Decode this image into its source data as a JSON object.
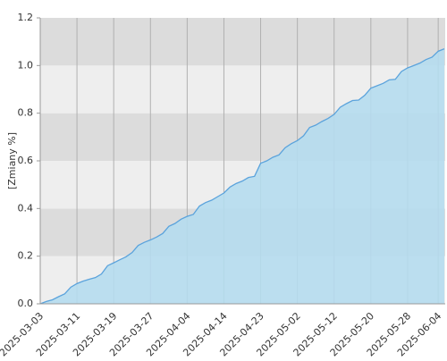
{
  "chart_data": {
    "type": "area",
    "y_label": "[Zmiany %]",
    "x": [
      "2025-03-03",
      "2025-03-04",
      "2025-03-05",
      "2025-03-06",
      "2025-03-07",
      "2025-03-10",
      "2025-03-11",
      "2025-03-12",
      "2025-03-13",
      "2025-03-14",
      "2025-03-17",
      "2025-03-18",
      "2025-03-19",
      "2025-03-20",
      "2025-03-21",
      "2025-03-24",
      "2025-03-25",
      "2025-03-26",
      "2025-03-27",
      "2025-03-28",
      "2025-03-31",
      "2025-04-01",
      "2025-04-02",
      "2025-04-03",
      "2025-04-04",
      "2025-04-07",
      "2025-04-08",
      "2025-04-09",
      "2025-04-10",
      "2025-04-11",
      "2025-04-14",
      "2025-04-15",
      "2025-04-16",
      "2025-04-17",
      "2025-04-18",
      "2025-04-22",
      "2025-04-23",
      "2025-04-24",
      "2025-04-25",
      "2025-04-28",
      "2025-04-29",
      "2025-04-30",
      "2025-05-02",
      "2025-05-05",
      "2025-05-06",
      "2025-05-07",
      "2025-05-08",
      "2025-05-09",
      "2025-05-12",
      "2025-05-13",
      "2025-05-14",
      "2025-05-15",
      "2025-05-16",
      "2025-05-19",
      "2025-05-20",
      "2025-05-21",
      "2025-05-22",
      "2025-05-23",
      "2025-05-26",
      "2025-05-27",
      "2025-05-28",
      "2025-05-29",
      "2025-05-30",
      "2025-06-02",
      "2025-06-03",
      "2025-06-04",
      "2025-06-05"
    ],
    "values": [
      0.0,
      0.01,
      0.017,
      0.03,
      0.042,
      0.07,
      0.085,
      0.095,
      0.103,
      0.11,
      0.125,
      0.16,
      0.172,
      0.185,
      0.197,
      0.215,
      0.245,
      0.258,
      0.268,
      0.28,
      0.295,
      0.325,
      0.337,
      0.355,
      0.367,
      0.375,
      0.41,
      0.425,
      0.435,
      0.45,
      0.465,
      0.49,
      0.505,
      0.515,
      0.53,
      0.535,
      0.59,
      0.6,
      0.615,
      0.625,
      0.655,
      0.672,
      0.685,
      0.705,
      0.74,
      0.75,
      0.765,
      0.778,
      0.795,
      0.825,
      0.84,
      0.853,
      0.855,
      0.875,
      0.905,
      0.915,
      0.925,
      0.94,
      0.942,
      0.975,
      0.99,
      1.0,
      1.01,
      1.025,
      1.035,
      1.06,
      1.07
    ],
    "color": "#b5dcee",
    "line_color": "#5ba3dc",
    "xticks": [
      "2025-03-03",
      "2025-03-11",
      "2025-03-19",
      "2025-03-27",
      "2025-04-04",
      "2025-04-14",
      "2025-04-23",
      "2025-05-02",
      "2025-05-12",
      "2025-05-20",
      "2025-05-28",
      "2025-06-04"
    ],
    "ylim": [
      0,
      1.2
    ],
    "yticks": [
      {
        "value": 0,
        "label": "0.0"
      },
      0.2,
      0.4,
      0.6,
      0.8,
      {
        "value": 1,
        "label": "1.0"
      },
      1.2
    ],
    "grid": true
  }
}
